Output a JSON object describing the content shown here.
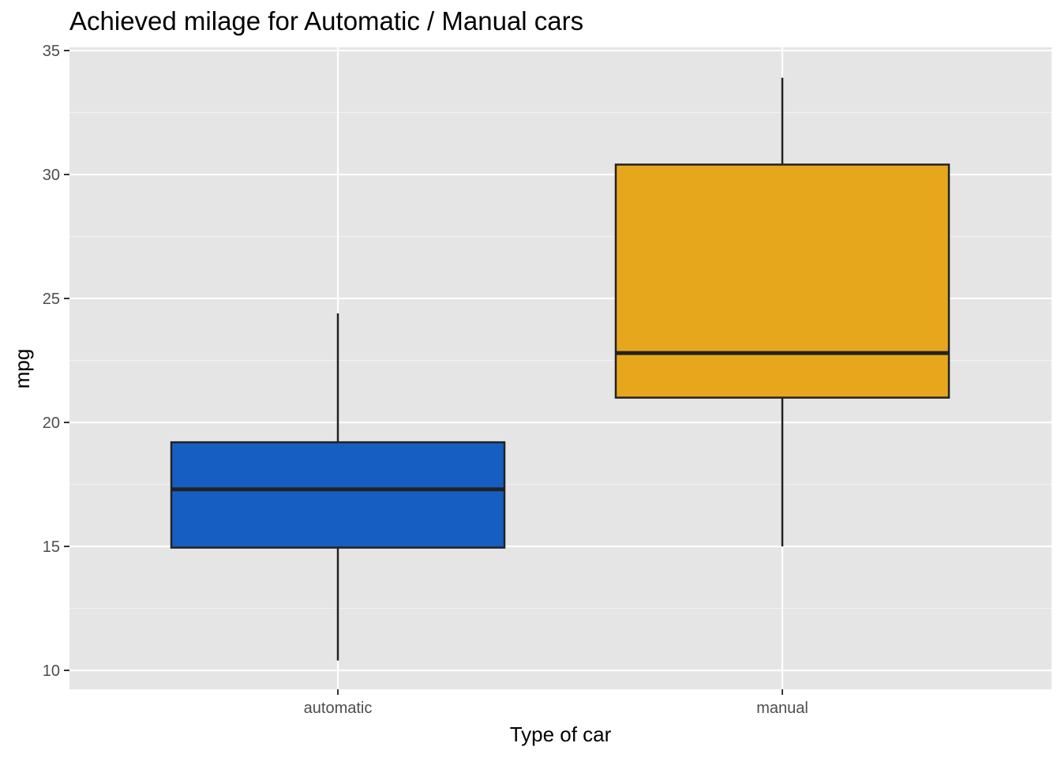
{
  "chart_data": {
    "type": "box",
    "title": "Achieved milage for Automatic / Manual cars",
    "xlabel": "Type of car",
    "ylabel": "mpg",
    "ylim": [
      9.2,
      35.0
    ],
    "yticks": [
      10,
      15,
      20,
      25,
      30,
      35
    ],
    "grid": true,
    "categories": [
      "automatic",
      "manual"
    ],
    "boxes": [
      {
        "category": "automatic",
        "min": 10.4,
        "q1": 14.95,
        "median": 17.3,
        "q3": 19.2,
        "max": 24.4,
        "color": "#175EC2"
      },
      {
        "category": "manual",
        "min": 15.0,
        "q1": 21.0,
        "median": 22.8,
        "q3": 30.4,
        "max": 33.9,
        "color": "#E7A71D"
      }
    ]
  }
}
